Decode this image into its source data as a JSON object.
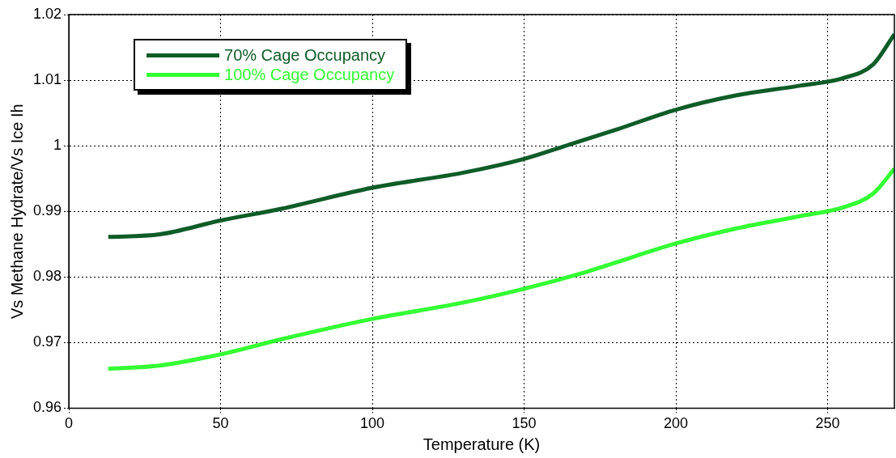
{
  "chart_data": {
    "type": "line",
    "xlabel": "Temperature (K)",
    "ylabel": "Vs Methane Hydrate/Vs Ice Ih",
    "xlim": [
      0,
      272
    ],
    "xticks": [
      0,
      50,
      100,
      150,
      200,
      250
    ],
    "ylim": [
      0.96,
      1.02
    ],
    "yticks": [
      0.96,
      0.97,
      0.98,
      0.99,
      1,
      1.01,
      1.02
    ],
    "grid": true,
    "legend": "top left",
    "marker": "none",
    "line_style": "solid",
    "series": [
      {
        "name": "70% Cage Occupancy",
        "color": "#0f5c28",
        "x": [
          13,
          30,
          50,
          70,
          100,
          130,
          150,
          165,
          180,
          200,
          220,
          240,
          255,
          265,
          272
        ],
        "values": [
          0.9861,
          0.9865,
          0.9886,
          0.9904,
          0.9936,
          0.9959,
          0.998,
          1.0002,
          1.0024,
          1.0055,
          1.0077,
          1.0091,
          1.0103,
          1.0124,
          1.017
        ]
      },
      {
        "name": "100% Cage Occupancy",
        "color": "#33ff33",
        "x": [
          13,
          30,
          50,
          70,
          100,
          130,
          150,
          170,
          200,
          220,
          240,
          255,
          265,
          272
        ],
        "values": [
          0.966,
          0.9665,
          0.9682,
          0.9705,
          0.9736,
          0.9761,
          0.9782,
          0.9807,
          0.9851,
          0.9874,
          0.9892,
          0.9906,
          0.9927,
          0.9965
        ]
      }
    ]
  }
}
